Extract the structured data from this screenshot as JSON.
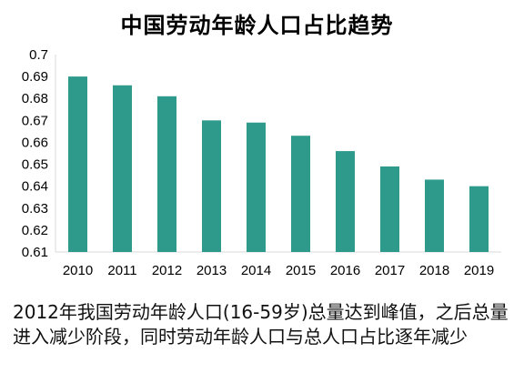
{
  "chart_data": {
    "type": "bar",
    "title": "中国劳动年龄人口占比趋势",
    "categories": [
      "2010",
      "2011",
      "2012",
      "2013",
      "2014",
      "2015",
      "2016",
      "2017",
      "2018",
      "2019"
    ],
    "values": [
      0.69,
      0.686,
      0.681,
      0.67,
      0.669,
      0.663,
      0.656,
      0.649,
      0.643,
      0.64
    ],
    "ylim": [
      0.61,
      0.7
    ],
    "yticks": [
      "0.61",
      "0.62",
      "0.63",
      "0.64",
      "0.65",
      "0.66",
      "0.67",
      "0.68",
      "0.69",
      "0.7"
    ],
    "grid": false,
    "bar_color": "#2e9a8c"
  },
  "caption": "2012年我国劳动年龄人口(16-59岁)总量达到峰值，之后总量进入减少阶段，同时劳动年龄人口与总人口占比逐年减少"
}
